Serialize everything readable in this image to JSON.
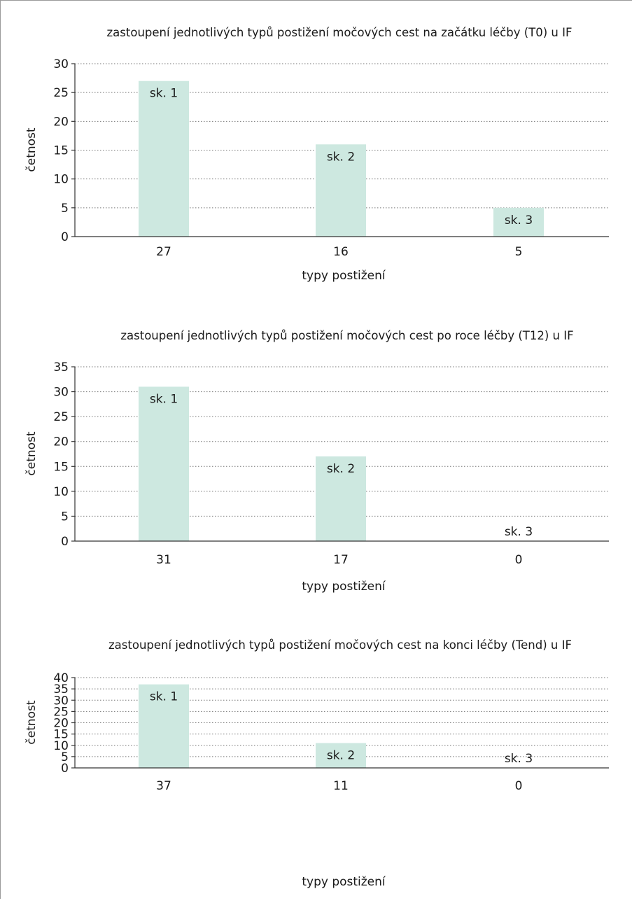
{
  "chart_data": [
    {
      "type": "bar",
      "title": "zastoupení jednotlivých typů postižení močových cest na začátku léčby (T0) u IF",
      "xlabel": "typy postižení",
      "ylabel": "četnost",
      "categories": [
        "27",
        "16",
        "5"
      ],
      "values": [
        27,
        16,
        5
      ],
      "bar_labels": [
        "sk. 1",
        "sk. 2",
        "sk. 3"
      ],
      "ylim": [
        0,
        30
      ],
      "ytick_step": 5,
      "grid": true,
      "bar_color": "#cde8e0"
    },
    {
      "type": "bar",
      "title": "zastoupení jednotlivých typů postižení močových cest po roce léčby (T12) u IF",
      "xlabel": "typy postižení",
      "ylabel": "četnost",
      "categories": [
        "31",
        "17",
        "0"
      ],
      "values": [
        31,
        17,
        0
      ],
      "bar_labels": [
        "sk. 1",
        "sk. 2",
        "sk. 3"
      ],
      "ylim": [
        0,
        35
      ],
      "ytick_step": 5,
      "grid": true,
      "bar_color": "#cde8e0"
    },
    {
      "type": "bar",
      "title": "zastoupení jednotlivých typů postižení močových cest na konci léčby (Tend) u IF",
      "xlabel": "typy postižení",
      "ylabel": "četnost",
      "categories": [
        "37",
        "11",
        "0"
      ],
      "values": [
        37,
        11,
        0
      ],
      "bar_labels": [
        "sk. 1",
        "sk. 2",
        "sk. 3"
      ],
      "ylim": [
        0,
        40
      ],
      "ytick_step": 5,
      "grid": true,
      "bar_color": "#cde8e0"
    }
  ]
}
